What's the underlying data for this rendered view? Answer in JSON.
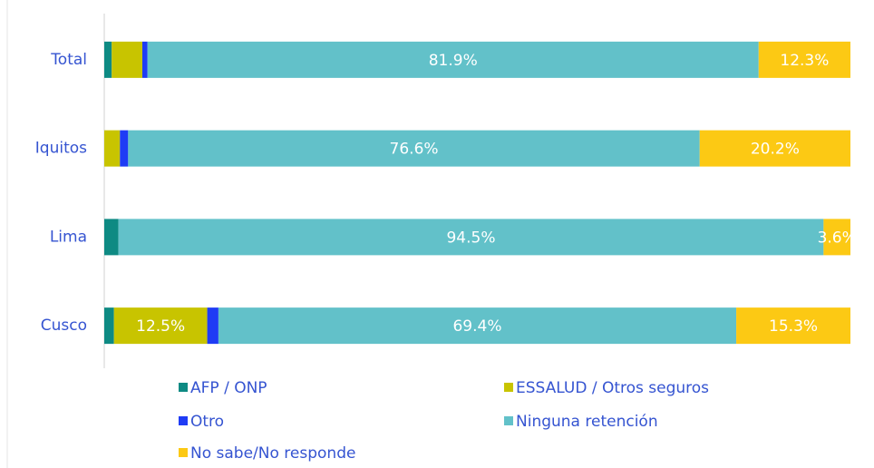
{
  "chart_data": {
    "type": "bar",
    "orientation": "horizontal",
    "stacked": true,
    "categories": [
      "Total",
      "Iquitos",
      "Lima",
      "Cusco"
    ],
    "xlim": [
      0,
      100
    ],
    "series": [
      {
        "name": "AFP / ONP",
        "color": "#0e8a83",
        "values": [
          1.0,
          0,
          1.9,
          1.3
        ]
      },
      {
        "name": "ESSALUD / Otros seguros",
        "color": "#c8c400",
        "values": [
          4.1,
          2.1,
          0,
          12.5
        ],
        "value_labels": [
          null,
          null,
          null,
          "12.5%"
        ]
      },
      {
        "name": "Otro",
        "color": "#1f3cf5",
        "values": [
          0.7,
          1.1,
          0,
          1.5
        ]
      },
      {
        "name": "Ninguna retención",
        "color": "#62c1c9",
        "values": [
          81.9,
          76.6,
          94.5,
          69.4
        ],
        "value_labels": [
          "81.9%",
          "76.6%",
          "94.5%",
          "69.4%"
        ]
      },
      {
        "name": "No sabe/No responde",
        "color": "#fcc914",
        "values": [
          12.3,
          20.2,
          3.6,
          15.3
        ],
        "value_labels": [
          "12.3%",
          "20.2%",
          "3.6%",
          "15.3%"
        ]
      }
    ]
  }
}
